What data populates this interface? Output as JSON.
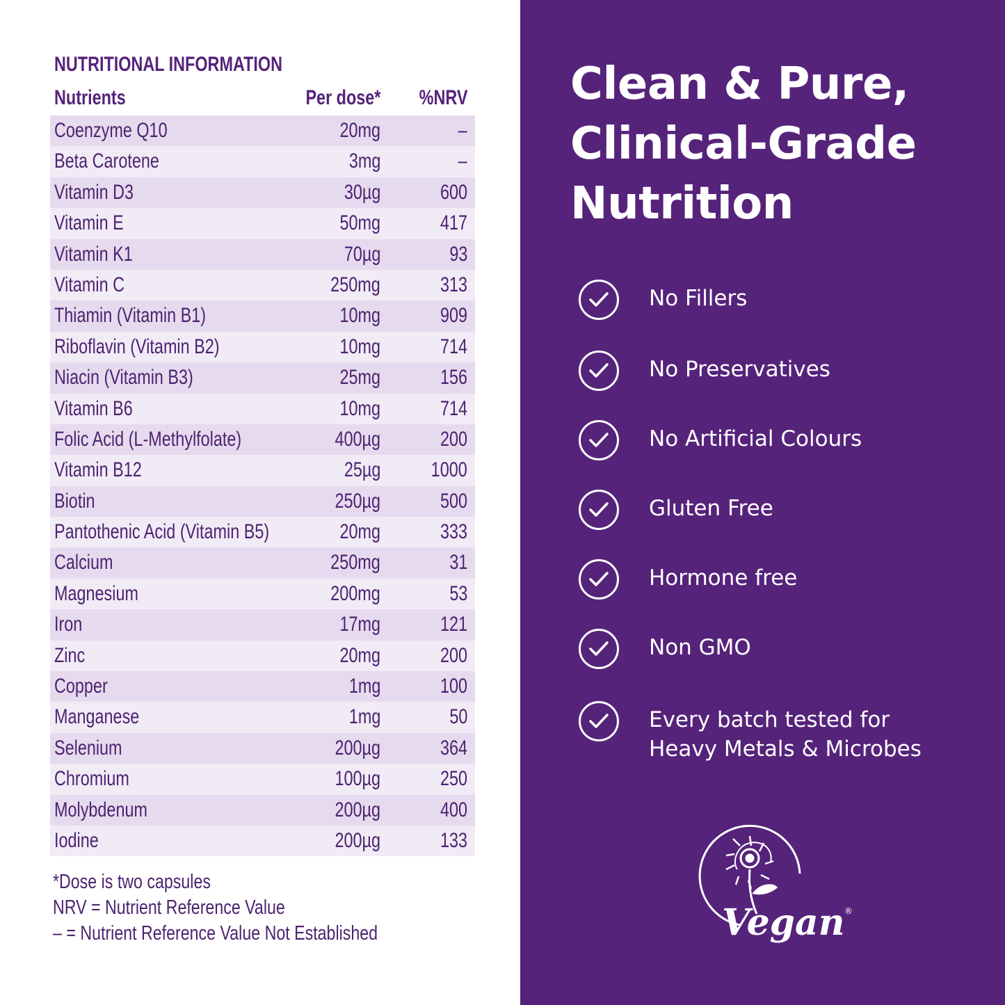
{
  "nutrition": {
    "title": "NUTRITIONAL INFORMATION",
    "headers": {
      "name": "Nutrients",
      "dose": "Per dose*",
      "nrv": "%NRV"
    },
    "rows": [
      {
        "name": "Coenzyme Q10",
        "dose": "20mg",
        "nrv": "–"
      },
      {
        "name": "Beta Carotene",
        "dose": "3mg",
        "nrv": "–"
      },
      {
        "name": "Vitamin D3",
        "dose": "30µg",
        "nrv": "600"
      },
      {
        "name": "Vitamin E",
        "dose": "50mg",
        "nrv": "417"
      },
      {
        "name": "Vitamin K1",
        "dose": "70µg",
        "nrv": "93"
      },
      {
        "name": "Vitamin C",
        "dose": "250mg",
        "nrv": "313"
      },
      {
        "name": "Thiamin (Vitamin B1)",
        "dose": "10mg",
        "nrv": "909"
      },
      {
        "name": "Riboflavin (Vitamin B2)",
        "dose": "10mg",
        "nrv": "714"
      },
      {
        "name": "Niacin (Vitamin B3)",
        "dose": "25mg",
        "nrv": "156"
      },
      {
        "name": "Vitamin B6",
        "dose": "10mg",
        "nrv": "714"
      },
      {
        "name": "Folic Acid (L-Methylfolate)",
        "dose": "400µg",
        "nrv": "200"
      },
      {
        "name": "Vitamin B12",
        "dose": "25µg",
        "nrv": "1000"
      },
      {
        "name": "Biotin",
        "dose": "250µg",
        "nrv": "500"
      },
      {
        "name": "Pantothenic Acid (Vitamin B5)",
        "dose": "20mg",
        "nrv": "333"
      },
      {
        "name": "Calcium",
        "dose": "250mg",
        "nrv": "31"
      },
      {
        "name": "Magnesium",
        "dose": "200mg",
        "nrv": "53"
      },
      {
        "name": "Iron",
        "dose": "17mg",
        "nrv": "121"
      },
      {
        "name": "Zinc",
        "dose": "20mg",
        "nrv": "200"
      },
      {
        "name": "Copper",
        "dose": "1mg",
        "nrv": "100"
      },
      {
        "name": "Manganese",
        "dose": "1mg",
        "nrv": "50"
      },
      {
        "name": "Selenium",
        "dose": "200µg",
        "nrv": "364"
      },
      {
        "name": "Chromium",
        "dose": "100µg",
        "nrv": "250"
      },
      {
        "name": "Molybdenum",
        "dose": "200µg",
        "nrv": "400"
      },
      {
        "name": "Iodine",
        "dose": "200µg",
        "nrv": "133"
      }
    ],
    "footnotes": [
      "*Dose is two capsules",
      "NRV = Nutrient Reference Value",
      "– = Nutrient Reference Value Not Established"
    ]
  },
  "headline": {
    "line1": "Clean & Pure,",
    "line2": "Clinical-Grade",
    "line3": "Nutrition"
  },
  "features": [
    {
      "icon": "check-circle-icon",
      "line1": "No Fillers"
    },
    {
      "icon": "check-circle-icon",
      "line1": "No Preservatives"
    },
    {
      "icon": "check-circle-icon",
      "line1": "No Artificial Colours"
    },
    {
      "icon": "check-circle-icon",
      "line1": "Gluten Free"
    },
    {
      "icon": "check-circle-icon",
      "line1": "Hormone free"
    },
    {
      "icon": "check-circle-icon",
      "line1": "Non GMO"
    },
    {
      "icon": "check-circle-icon",
      "line1": "Every batch tested for",
      "line2": "Heavy Metals & Microbes"
    }
  ],
  "vegan_logo": {
    "text": "Vegan",
    "mark": "®",
    "icon": "vegan-sunflower-logo"
  },
  "colors": {
    "brand_purple": "#56237b",
    "row_dark": "#e6dbee",
    "row_light": "#f1ebf6",
    "text_purple": "#4c2370",
    "white": "#ffffff"
  }
}
